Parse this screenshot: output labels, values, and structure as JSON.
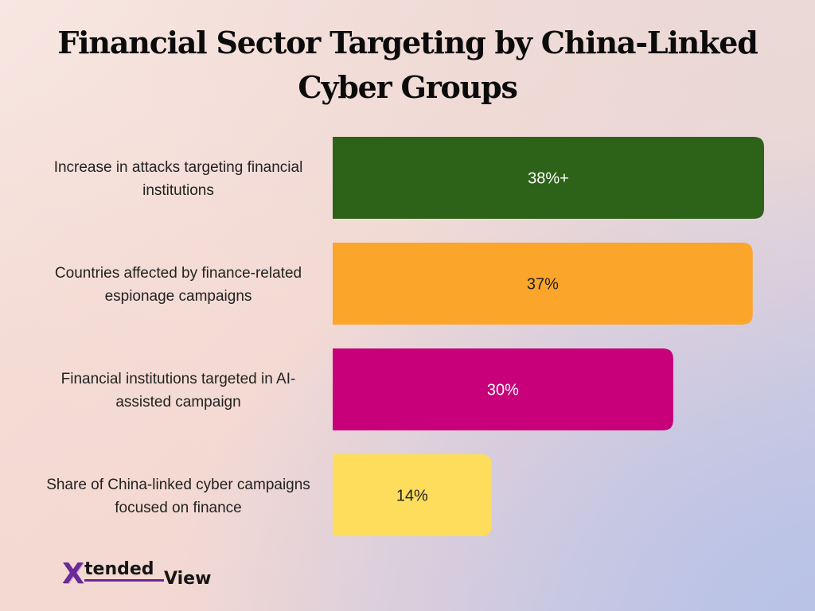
{
  "title": {
    "line1": "Financial Sector Targeting by China-Linked",
    "line2": "Cyber Groups"
  },
  "chart_data": {
    "type": "bar",
    "orientation": "horizontal",
    "title": "Financial Sector Targeting by China-Linked Cyber Groups",
    "categories": [
      "Increase in attacks targeting financial institutions",
      "Countries affected by finance-related espionage campaigns",
      "Financial institutions targeted in AI-assisted campaign",
      "Share of China-linked cyber campaigns focused on finance"
    ],
    "category_lines": [
      [
        "Increase in attacks targeting financial",
        "institutions"
      ],
      [
        "Countries affected by finance-related",
        "espionage campaigns"
      ],
      [
        "Financial institutions targeted in AI-",
        "assisted campaign"
      ],
      [
        "Share of China-linked cyber campaigns",
        "focused on finance"
      ]
    ],
    "values": [
      38,
      37,
      30,
      14
    ],
    "value_labels": [
      "38%+",
      "37%",
      "30%",
      "14%"
    ],
    "bar_colors": [
      "#2d6319",
      "#fba52a",
      "#c8007a",
      "#fedd5d"
    ],
    "label_colors": [
      "#ffffff",
      "#222222",
      "#ffffff",
      "#222222"
    ],
    "xlim": [
      0,
      38
    ],
    "grid": false,
    "legend": "none"
  },
  "logo": {
    "x": "X",
    "tended": "tended",
    "view": "View"
  }
}
